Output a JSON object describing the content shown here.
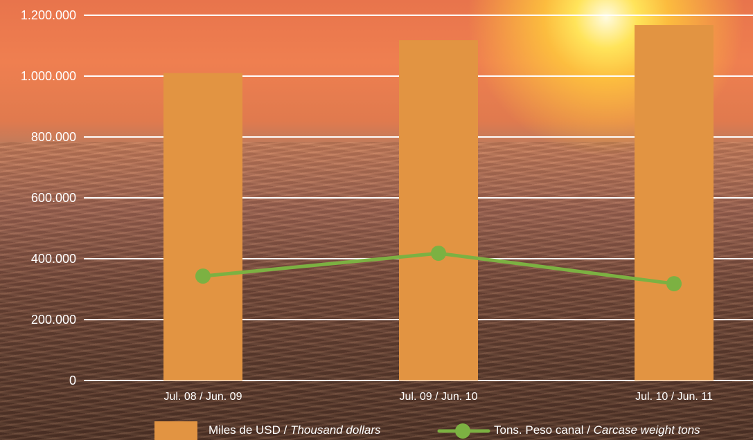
{
  "colors": {
    "bar": "#e29442",
    "line": "#7cb142",
    "gridline": "#ffffff",
    "text": "#ffffff"
  },
  "chart_data": {
    "type": "bar",
    "categories": [
      "Jul. 08 / Jun. 09",
      "Jul. 09 / Jun. 10",
      "Jul. 10 / Jun. 11"
    ],
    "series": [
      {
        "name": "Miles de USD / Thousand dollars",
        "type": "bar",
        "values": [
          1010000,
          1118000,
          1168000
        ]
      },
      {
        "name": "Tons. Peso canal / Carcase weight tons",
        "type": "line",
        "values": [
          343000,
          418000,
          318000
        ]
      }
    ],
    "ylim": [
      0,
      1200000
    ],
    "yticks": [
      "0",
      "200.000",
      "400.000",
      "600.000",
      "800.000",
      "1.000.000",
      "1.200.000"
    ],
    "grid": true,
    "legend_position": "bottom"
  },
  "legend": {
    "bar_label_main": "Miles de USD / ",
    "bar_label_italic": "Thousand dollars",
    "line_label_main": "Tons. Peso canal / ",
    "line_label_italic": "Carcase weight tons"
  }
}
